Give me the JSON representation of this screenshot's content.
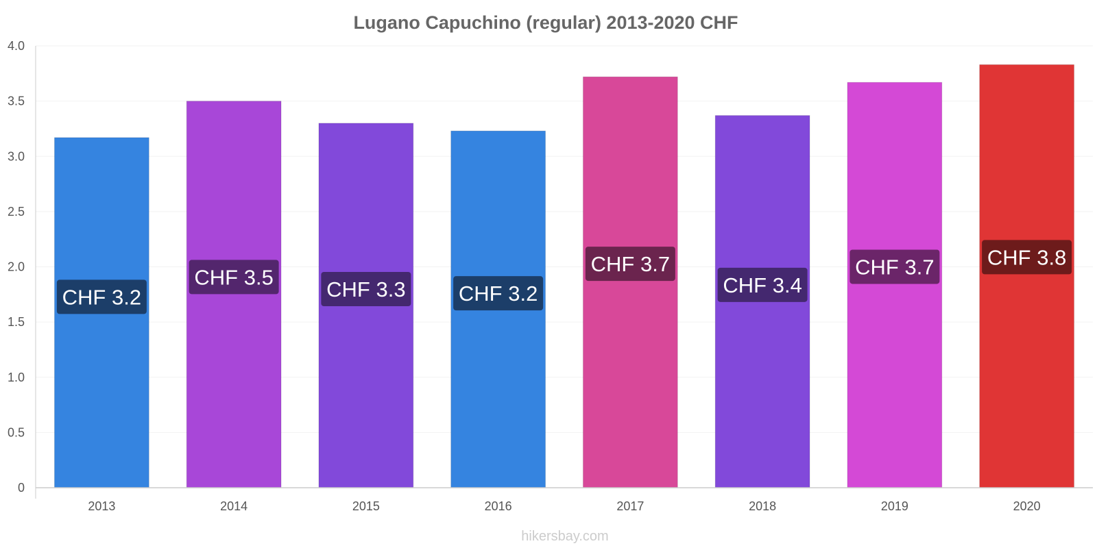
{
  "watermark": "hikersbay.com",
  "chart_data": {
    "type": "bar",
    "title": "Lugano Capuchino (regular) 2013-2020 CHF",
    "xlabel": "",
    "ylabel": "",
    "categories": [
      "2013",
      "2014",
      "2015",
      "2016",
      "2017",
      "2018",
      "2019",
      "2020"
    ],
    "values": [
      3.17,
      3.5,
      3.3,
      3.23,
      3.72,
      3.37,
      3.67,
      3.83
    ],
    "data_labels": [
      "CHF 3.2",
      "CHF 3.5",
      "CHF 3.3",
      "CHF 3.2",
      "CHF 3.7",
      "CHF 3.4",
      "CHF 3.7",
      "CHF 3.8"
    ],
    "bar_colors": [
      "#3584e0",
      "#a847d8",
      "#8249da",
      "#3584e0",
      "#d84899",
      "#8249da",
      "#d449d6",
      "#e03535"
    ],
    "label_colors": [
      "#1c3e69",
      "#53266d",
      "#44286f",
      "#1c3e69",
      "#6b244e",
      "#44286f",
      "#6b2569",
      "#6d1b1b"
    ],
    "ylim": [
      0,
      4.0
    ],
    "yticks": [
      "0",
      "0.5",
      "1.0",
      "1.5",
      "2.0",
      "2.5",
      "3.0",
      "3.5",
      "4.0"
    ],
    "grid": true,
    "legend": "none"
  }
}
